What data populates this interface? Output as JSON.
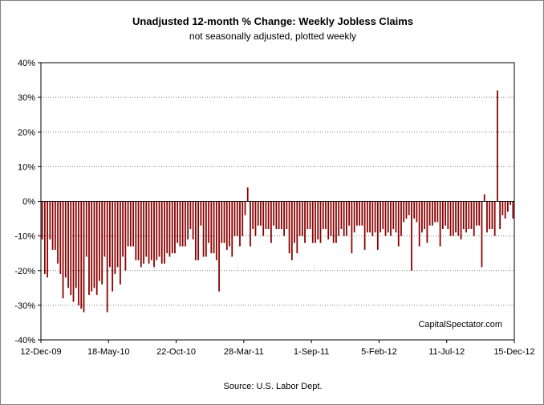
{
  "chart_data": {
    "type": "bar",
    "title": "Unadjusted 12-month %  Change: Weekly Jobless Claims",
    "subtitle": "not seasonally adjusted, plotted weekly",
    "xlabel": "",
    "ylabel": "",
    "ylim": [
      -40,
      40
    ],
    "yticks": [
      -40,
      -30,
      -20,
      -10,
      0,
      10,
      20,
      30,
      40
    ],
    "yticks_labels": [
      "-40%",
      "-30%",
      "-20%",
      "-10%",
      "0%",
      "10%",
      "20%",
      "30%",
      "40%"
    ],
    "xticks_labels": [
      "12-Dec-09",
      "18-May-10",
      "22-Oct-10",
      "28-Mar-11",
      "1-Sep-11",
      "5-Feb-12",
      "11-Jul-12",
      "15-Dec-12"
    ],
    "grid": true,
    "watermark": "CapitalSpectator.com",
    "source": "Source: U.S. Labor Dept.",
    "color": "#8b0000",
    "values": [
      -11,
      -21,
      -22,
      -11,
      -14,
      -14,
      -18,
      -21,
      -28,
      -22,
      -25,
      -27,
      -29,
      -25,
      -30,
      -31,
      -32,
      -16,
      -27,
      -26,
      -25,
      -27,
      -23,
      -24,
      -16,
      -32,
      -19,
      -26,
      -21,
      -19,
      -24,
      -16,
      -20,
      -13,
      -13,
      -13,
      -17,
      -17,
      -19,
      -18,
      -16,
      -18,
      -17,
      -19,
      -17,
      -16,
      -18,
      -18,
      -15,
      -16,
      -15,
      -15,
      -12,
      -13,
      -13,
      -13,
      -11,
      -8,
      -11,
      -17,
      -17,
      -7,
      -16,
      -16,
      -12,
      -15,
      -15,
      -17,
      -26,
      -12,
      -12,
      -14,
      -13,
      -16,
      -10,
      -10,
      -13,
      -10,
      -4,
      4,
      -13,
      -8,
      -10,
      -7,
      -7,
      -10,
      -8,
      -8,
      -12,
      -7,
      -8,
      -8,
      -8,
      -10,
      -8,
      -15,
      -17,
      -12,
      -15,
      -10,
      -10,
      -12,
      -8,
      -8,
      -12,
      -12,
      -11,
      -12,
      -8,
      -8,
      -11,
      -10,
      -12,
      -12,
      -10,
      -8,
      -10,
      -10,
      -7,
      -15,
      -9,
      -7,
      -7,
      -7,
      -14,
      -9,
      -9,
      -10,
      -9,
      -14,
      -9,
      -8,
      -10,
      -9,
      -10,
      -8,
      -9,
      -13,
      -10,
      -6,
      -5,
      -4,
      -20,
      -5,
      -6,
      -13,
      -9,
      -8,
      -12,
      -7,
      -7,
      -6,
      -6,
      -13,
      -8,
      -7,
      -8,
      -10,
      -10,
      -9,
      -10,
      -11,
      -8,
      -9,
      -8,
      -8,
      -10,
      -7,
      -7,
      -19,
      2,
      -9,
      -8,
      -8,
      -10,
      32,
      -8,
      -4,
      -5,
      -3,
      -1,
      -5
    ]
  }
}
